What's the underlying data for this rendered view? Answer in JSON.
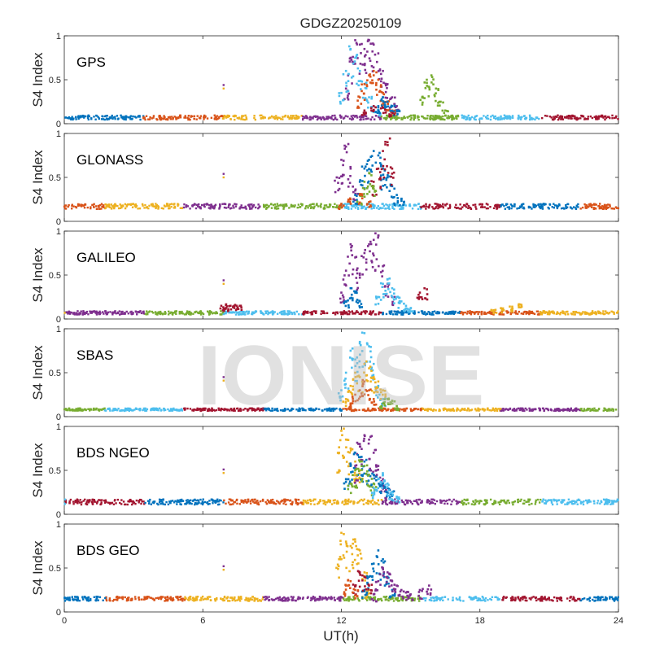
{
  "chart_data": {
    "type": "scatter",
    "title": "GDGZ20250109",
    "xlabel": "UT(h)",
    "ylabel": "S4 Index",
    "xlim": [
      0,
      24
    ],
    "ylim": [
      0,
      1
    ],
    "x_ticks": [
      "0",
      "6",
      "12",
      "18",
      "24"
    ],
    "y_ticks": [
      "0",
      "0.5",
      "1"
    ],
    "grid": false,
    "watermark": "IONISE",
    "series_colors": [
      "#0072BD",
      "#D95319",
      "#EDB120",
      "#7E2F8E",
      "#77AC30",
      "#4DBEEE",
      "#A2142F"
    ],
    "panels": [
      {
        "name": "GPS",
        "baseline": 0.07,
        "noise": 0.025,
        "series": [
          {
            "color": "#7E2F8E",
            "x": [
              12.2,
              12.4,
              12.6,
              12.8,
              13.0,
              13.2,
              13.4,
              13.6,
              13.8,
              14.0,
              14.2,
              14.4
            ],
            "y": [
              0.4,
              0.75,
              0.95,
              0.9,
              0.85,
              0.95,
              0.9,
              0.8,
              0.6,
              0.45,
              0.3,
              0.2
            ]
          },
          {
            "color": "#4DBEEE",
            "x": [
              12.0,
              12.2,
              12.4,
              12.6,
              12.8,
              13.0,
              13.2,
              13.4,
              13.6
            ],
            "y": [
              0.35,
              0.6,
              0.85,
              0.75,
              0.6,
              0.45,
              0.3,
              0.2,
              0.15
            ]
          },
          {
            "color": "#D95319",
            "x": [
              12.8,
              13.0,
              13.2,
              13.4,
              13.6,
              13.8,
              14.0,
              14.2
            ],
            "y": [
              0.3,
              0.45,
              0.55,
              0.6,
              0.5,
              0.35,
              0.25,
              0.15
            ]
          },
          {
            "color": "#0072BD",
            "x": [
              13.6,
              13.8,
              14.0,
              14.2,
              14.4
            ],
            "y": [
              0.2,
              0.3,
              0.25,
              0.2,
              0.15
            ]
          },
          {
            "color": "#77AC30",
            "x": [
              15.5,
              15.7,
              15.9,
              16.1,
              16.3,
              16.5
            ],
            "y": [
              0.3,
              0.5,
              0.55,
              0.4,
              0.25,
              0.15
            ]
          },
          {
            "color": "#A2142F",
            "x": [
              13.0,
              13.4,
              13.8,
              14.2
            ],
            "y": [
              0.15,
              0.2,
              0.18,
              0.12
            ]
          }
        ]
      },
      {
        "name": "GLONASS",
        "baseline": 0.17,
        "noise": 0.03,
        "series": [
          {
            "color": "#7E2F8E",
            "x": [
              11.8,
              12.0,
              12.2,
              12.4,
              12.6
            ],
            "y": [
              0.5,
              0.7,
              0.85,
              0.6,
              0.35
            ]
          },
          {
            "color": "#0072BD",
            "x": [
              12.6,
              12.8,
              13.0,
              13.2,
              13.4,
              13.6,
              13.8,
              14.0,
              14.2,
              14.4,
              14.6
            ],
            "y": [
              0.3,
              0.45,
              0.6,
              0.7,
              0.8,
              0.75,
              0.6,
              0.5,
              0.4,
              0.3,
              0.25
            ]
          },
          {
            "color": "#A2142F",
            "x": [
              13.4,
              13.6,
              13.8,
              14.0,
              14.2
            ],
            "y": [
              0.45,
              0.6,
              0.8,
              0.9,
              0.6
            ]
          },
          {
            "color": "#77AC30",
            "x": [
              12.8,
              13.0,
              13.2,
              13.4
            ],
            "y": [
              0.3,
              0.45,
              0.55,
              0.4
            ]
          },
          {
            "color": "#D95319",
            "x": [
              12.0,
              12.4,
              12.8,
              13.2
            ],
            "y": [
              0.2,
              0.25,
              0.3,
              0.22
            ]
          }
        ]
      },
      {
        "name": "GALILEO",
        "baseline": 0.07,
        "noise": 0.02,
        "series": [
          {
            "color": "#7E2F8E",
            "x": [
              12.0,
              12.2,
              12.4,
              12.6,
              12.8,
              13.0,
              13.2,
              13.4,
              13.6,
              13.8,
              14.0,
              14.2
            ],
            "y": [
              0.3,
              0.55,
              0.85,
              0.7,
              0.5,
              0.75,
              0.85,
              0.9,
              0.95,
              0.6,
              0.4,
              0.25
            ]
          },
          {
            "color": "#4DBEEE",
            "x": [
              13.6,
              13.8,
              14.0,
              14.2,
              14.4,
              14.6,
              14.8,
              15.0
            ],
            "y": [
              0.25,
              0.4,
              0.45,
              0.35,
              0.25,
              0.2,
              0.15,
              0.12
            ]
          },
          {
            "color": "#0072BD",
            "x": [
              12.2,
              12.4,
              12.6,
              12.8
            ],
            "y": [
              0.2,
              0.35,
              0.3,
              0.2
            ]
          },
          {
            "color": "#A2142F",
            "x": [
              6.8,
              7.0,
              7.2,
              7.4,
              7.6,
              15.4,
              15.6
            ],
            "y": [
              0.15,
              0.16,
              0.15,
              0.16,
              0.15,
              0.3,
              0.35
            ]
          },
          {
            "color": "#EDB120",
            "x": [
              18.6,
              19.0,
              19.4,
              19.8
            ],
            "y": [
              0.1,
              0.12,
              0.14,
              0.16
            ]
          }
        ]
      },
      {
        "name": "SBAS",
        "baseline": 0.08,
        "noise": 0.015,
        "series": [
          {
            "color": "#4DBEEE",
            "x": [
              12.0,
              12.2,
              12.4,
              12.6,
              12.8,
              13.0,
              13.2,
              13.4,
              13.6,
              13.8
            ],
            "y": [
              0.3,
              0.5,
              0.75,
              0.65,
              0.85,
              0.95,
              0.8,
              0.6,
              0.35,
              0.2
            ]
          },
          {
            "color": "#EDB120",
            "x": [
              12.2,
              12.4,
              12.6,
              12.8,
              13.0,
              13.2,
              13.4,
              13.6,
              13.8
            ],
            "y": [
              0.2,
              0.35,
              0.5,
              0.45,
              0.6,
              0.55,
              0.45,
              0.4,
              0.3
            ]
          },
          {
            "color": "#D95319",
            "x": [
              12.4,
              12.6,
              12.8,
              13.0,
              13.2,
              13.4
            ],
            "y": [
              0.15,
              0.25,
              0.3,
              0.4,
              0.3,
              0.2
            ]
          },
          {
            "color": "#77AC30",
            "x": [
              13.8,
              14.0,
              14.2,
              14.4
            ],
            "y": [
              0.15,
              0.2,
              0.18,
              0.12
            ]
          }
        ]
      },
      {
        "name": "BDS NGEO",
        "baseline": 0.14,
        "noise": 0.03,
        "series": [
          {
            "color": "#EDB120",
            "x": [
              11.9,
              12.0,
              12.2,
              12.4,
              12.6,
              12.8
            ],
            "y": [
              0.7,
              0.95,
              0.85,
              0.75,
              0.6,
              0.5
            ]
          },
          {
            "color": "#7E2F8E",
            "x": [
              12.6,
              12.8,
              13.0,
              13.2,
              13.4,
              13.6,
              13.8,
              14.0
            ],
            "y": [
              0.55,
              0.8,
              0.9,
              0.85,
              0.7,
              0.55,
              0.4,
              0.3
            ]
          },
          {
            "color": "#0072BD",
            "x": [
              12.2,
              12.4,
              12.6,
              12.8,
              13.0,
              13.2,
              13.4,
              13.6,
              13.8,
              14.0,
              14.2
            ],
            "y": [
              0.4,
              0.55,
              0.7,
              0.65,
              0.6,
              0.5,
              0.45,
              0.4,
              0.35,
              0.3,
              0.25
            ]
          },
          {
            "color": "#77AC30",
            "x": [
              12.4,
              12.6,
              12.8,
              13.0,
              13.2,
              13.4
            ],
            "y": [
              0.35,
              0.5,
              0.6,
              0.55,
              0.45,
              0.35
            ]
          },
          {
            "color": "#4DBEEE",
            "x": [
              13.4,
              13.6,
              13.8,
              14.0,
              14.2,
              14.4
            ],
            "y": [
              0.3,
              0.4,
              0.45,
              0.35,
              0.25,
              0.2
            ]
          }
        ]
      },
      {
        "name": "BDS GEO",
        "baseline": 0.15,
        "noise": 0.025,
        "series": [
          {
            "color": "#EDB120",
            "x": [
              11.9,
              12.0,
              12.2,
              12.4,
              12.6,
              12.8,
              13.0,
              13.2
            ],
            "y": [
              0.6,
              0.9,
              0.8,
              0.75,
              0.8,
              0.7,
              0.45,
              0.25
            ]
          },
          {
            "color": "#0072BD",
            "x": [
              13.0,
              13.2,
              13.4,
              13.6,
              13.8,
              14.0,
              14.2
            ],
            "y": [
              0.25,
              0.4,
              0.55,
              0.7,
              0.6,
              0.4,
              0.25
            ]
          },
          {
            "color": "#7E2F8E",
            "x": [
              13.4,
              13.6,
              13.8,
              14.0,
              14.2,
              14.4,
              14.6,
              14.8,
              15.0,
              15.4,
              15.8
            ],
            "y": [
              0.2,
              0.35,
              0.5,
              0.45,
              0.35,
              0.3,
              0.25,
              0.22,
              0.2,
              0.25,
              0.3
            ]
          },
          {
            "color": "#A2142F",
            "x": [
              12.6,
              12.8,
              13.0,
              13.2
            ],
            "y": [
              0.3,
              0.45,
              0.4,
              0.3
            ]
          },
          {
            "color": "#D95319",
            "x": [
              12.2,
              12.4,
              12.6
            ],
            "y": [
              0.3,
              0.35,
              0.25
            ]
          }
        ]
      }
    ]
  }
}
